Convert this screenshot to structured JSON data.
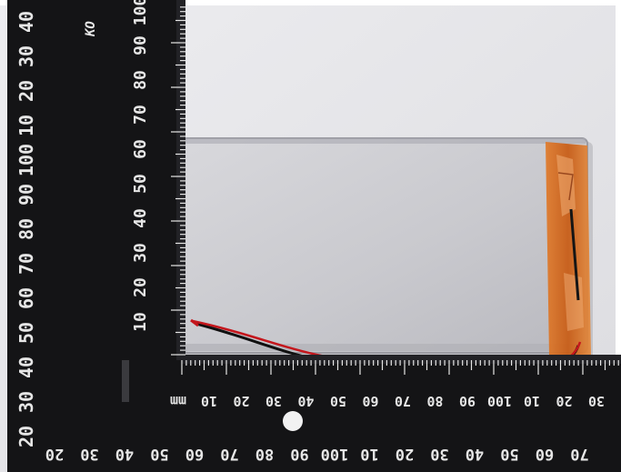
{
  "photo": {
    "subject": "lithium-polymer-battery-on-measuring-ruler",
    "colors": {
      "background": "#e7e7ea",
      "ruler": "#141416",
      "ruler_marks": "#e6e6e6",
      "battery": "#cfcfd3",
      "kapton_tape": "#d86a1c",
      "wire_red": "#c4161c",
      "wire_black": "#101010"
    }
  },
  "ruler": {
    "unit": "mm",
    "brand_mark": "KO",
    "vertical_inner_ticks": [
      "10",
      "20",
      "30",
      "40",
      "50",
      "60",
      "70",
      "80",
      "90",
      "100"
    ],
    "vertical_outer_ticks": [
      "20",
      "30",
      "40",
      "50",
      "60",
      "70",
      "80",
      "90",
      "100",
      "10",
      "20",
      "30",
      "40"
    ],
    "horizontal_upper_ticks": [
      "10",
      "20",
      "30",
      "40",
      "50",
      "60",
      "70",
      "80",
      "90",
      "100",
      "10",
      "20",
      "30"
    ],
    "horizontal_lower_ticks": [
      "20",
      "30",
      "40",
      "50",
      "60",
      "70",
      "80",
      "90",
      "100",
      "10",
      "20",
      "30",
      "40",
      "50",
      "60",
      "70"
    ]
  }
}
